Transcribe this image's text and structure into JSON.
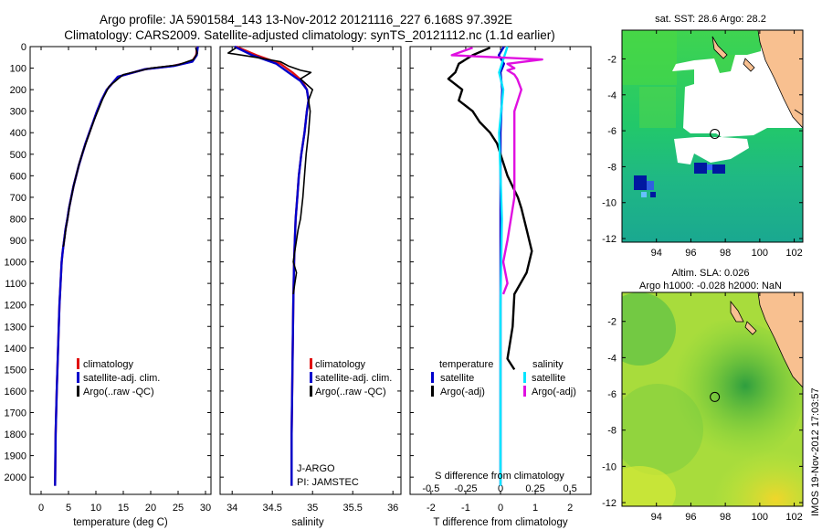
{
  "figure": {
    "title_line1": "Argo profile: JA 5901584_143 13-Nov-2012 20121116_227 6.168S 97.392E",
    "title_line2": "Climatology: CARS2009. Satellite-adjusted climatology: synTS_20121112.nc (1.1d earlier)",
    "stamp": "IMOS 19-Nov-2012 17:03:57",
    "colors": {
      "climatology": "#e01010",
      "satellite": "#0000cc",
      "argo": "#000000",
      "satellite_s": "#00e5ff",
      "argo_s": "#e010e0"
    }
  },
  "chart_data": [
    {
      "type": "line",
      "xlabel": "temperature (deg C)",
      "ylabel": "",
      "xlim": [
        -2,
        31
      ],
      "ylim": [
        2080,
        0
      ],
      "y_inverted": true,
      "xticks": [
        0,
        5,
        10,
        15,
        20,
        25,
        30
      ],
      "yticks": [
        0,
        100,
        200,
        300,
        400,
        500,
        600,
        700,
        800,
        900,
        1000,
        1100,
        1200,
        1300,
        1400,
        1500,
        1600,
        1700,
        1800,
        1900,
        2000
      ],
      "legend": {
        "placement": "lower-center",
        "entries": [
          "climatology",
          "satellite-adj. clim.",
          "Argo(..raw -QC)"
        ]
      },
      "series": [
        {
          "name": "climatology",
          "color": "#e01010",
          "x": [
            28.5,
            28.3,
            27.5,
            24,
            19,
            14,
            12,
            11,
            10.2,
            9.5,
            8.8,
            8.1,
            7.5,
            6.9,
            6.4,
            5.9,
            5.5,
            5.1,
            4.8,
            4.45,
            4.2,
            3.95,
            3.75,
            3.55,
            3.35,
            3.1,
            2.85,
            2.65,
            2.55
          ],
          "y": [
            0,
            40,
            70,
            90,
            105,
            140,
            200,
            250,
            300,
            350,
            400,
            450,
            500,
            550,
            600,
            650,
            700,
            750,
            800,
            850,
            900,
            950,
            1000,
            1100,
            1200,
            1400,
            1600,
            1800,
            2040
          ]
        },
        {
          "name": "satellite-adj. clim.",
          "color": "#0000cc",
          "x": [
            28.6,
            28.4,
            27.6,
            24.2,
            19,
            14,
            12,
            11,
            10.2,
            9.5,
            8.8,
            8.1,
            7.5,
            6.9,
            6.4,
            5.9,
            5.5,
            5.1,
            4.8,
            4.45,
            4.2,
            3.95,
            3.75,
            3.55,
            3.35,
            3.1,
            2.85,
            2.65,
            2.55
          ],
          "y": [
            0,
            40,
            70,
            90,
            105,
            140,
            200,
            250,
            300,
            350,
            400,
            450,
            500,
            550,
            600,
            650,
            700,
            750,
            800,
            850,
            900,
            950,
            1000,
            1100,
            1200,
            1400,
            1600,
            1800,
            2040
          ]
        },
        {
          "name": "Argo(..raw -QC)",
          "color": "#000000",
          "x": [
            28.2,
            28.5,
            27.8,
            25,
            20,
            15,
            12.4,
            11.3,
            10.5,
            9.7,
            9.0,
            8.3,
            7.6,
            7.0,
            6.5,
            6.0,
            5.6,
            5.2,
            4.9,
            4.55,
            4.3,
            4.05
          ],
          "y": [
            5,
            30,
            60,
            85,
            100,
            130,
            185,
            240,
            290,
            340,
            390,
            440,
            490,
            540,
            590,
            640,
            690,
            740,
            790,
            840,
            890,
            930
          ]
        }
      ]
    },
    {
      "type": "line",
      "xlabel": "salinity",
      "ylabel": "",
      "xlim": [
        33.85,
        36.1
      ],
      "ylim": [
        2080,
        0
      ],
      "y_inverted": true,
      "xticks": [
        34,
        34.5,
        35,
        35.5,
        36
      ],
      "xticklabels": [
        "34",
        "34.5",
        "35",
        "35.5",
        "36"
      ],
      "legend": {
        "placement": "lower-center",
        "entries": [
          "climatology",
          "satellite-adj. clim.",
          "Argo(..raw -QC)"
        ]
      },
      "annotations": [
        "J-ARGO",
        "PI: JAMSTEC"
      ],
      "series": [
        {
          "name": "climatology",
          "color": "#e01010",
          "x": [
            34.05,
            34.3,
            34.6,
            34.75,
            34.87,
            34.93,
            34.95,
            34.93,
            34.9,
            34.86,
            34.83,
            34.81,
            34.79,
            34.78,
            34.77,
            34.76,
            34.75,
            34.74,
            34.74
          ],
          "y": [
            0,
            40,
            80,
            120,
            160,
            200,
            250,
            300,
            400,
            500,
            600,
            700,
            800,
            900,
            1000,
            1200,
            1500,
            1800,
            2040
          ]
        },
        {
          "name": "satellite-adj. clim.",
          "color": "#0000cc",
          "x": [
            34.03,
            34.25,
            34.55,
            34.7,
            34.85,
            34.93,
            34.95,
            34.93,
            34.9,
            34.86,
            34.83,
            34.81,
            34.79,
            34.78,
            34.77,
            34.76,
            34.75,
            34.74,
            34.74
          ],
          "y": [
            0,
            40,
            80,
            120,
            160,
            200,
            250,
            300,
            400,
            500,
            600,
            700,
            800,
            900,
            1000,
            1200,
            1500,
            1800,
            2040
          ]
        },
        {
          "name": "Argo(..raw -QC)",
          "color": "#000000",
          "x": [
            34.05,
            33.95,
            34.3,
            34.6,
            34.7,
            34.85,
            34.98,
            34.85,
            35.0,
            34.95,
            34.97,
            34.95,
            34.92,
            34.9,
            34.88,
            34.85,
            34.82,
            34.8,
            34.78,
            34.76,
            34.8,
            34.78,
            34.76
          ],
          "y": [
            5,
            30,
            50,
            70,
            90,
            110,
            120,
            150,
            200,
            250,
            300,
            400,
            500,
            600,
            700,
            800,
            850,
            900,
            950,
            1000,
            1050,
            1100,
            1150
          ]
        }
      ]
    },
    {
      "type": "line",
      "xlabel": "T difference from climatology",
      "title_bottom": "S difference from climatology",
      "xlim": [
        -2.6,
        2.6
      ],
      "ylim": [
        2080,
        0
      ],
      "y_inverted": true,
      "xticks": [
        -2,
        -1,
        0,
        1,
        2
      ],
      "xticklabels": [
        "-2",
        "-1",
        "0",
        "1",
        "2"
      ],
      "s_ticks": [
        -0.5,
        -0.25,
        0,
        0.25,
        0.5
      ],
      "s_ticklabels": [
        "-0.5",
        "-0.25",
        "0",
        "0.25",
        "0.5"
      ],
      "legend": {
        "placement": "lower-center",
        "headers": [
          "temperature",
          "salinity"
        ],
        "entries": [
          "satellite",
          "Argo(-adj)",
          "satellite",
          "Argo(-adj)"
        ]
      },
      "series": [
        {
          "name": "temperature satellite",
          "color": "#0000cc",
          "x": [
            0.1,
            -0.05,
            0.1,
            0.0,
            0.05,
            0.0,
            0.0,
            0.0,
            0.0,
            0.0
          ],
          "y": [
            0,
            40,
            80,
            120,
            200,
            400,
            800,
            1200,
            1600,
            2040
          ]
        },
        {
          "name": "temperature Argo(-adj)",
          "color": "#000000",
          "x": [
            -0.3,
            -0.8,
            -1.2,
            -1.3,
            -1.5,
            -1.1,
            -1.2,
            -0.8,
            -0.6,
            -0.3,
            -0.1,
            0.0,
            0.2,
            0.35,
            0.5,
            0.6,
            0.75,
            0.9,
            0.75,
            0.4,
            0.35,
            0.2,
            0.4
          ],
          "y": [
            5,
            40,
            80,
            120,
            150,
            200,
            250,
            300,
            350,
            400,
            450,
            500,
            600,
            650,
            700,
            750,
            850,
            950,
            1050,
            1150,
            1300,
            1450,
            1500
          ]
        },
        {
          "name": "salinity satellite",
          "color": "#00e5ff",
          "x": [
            0.05,
            0.02,
            -0.01,
            0.02,
            -0.01,
            0.01,
            0.0,
            0.0,
            0.0
          ],
          "y": [
            0,
            60,
            120,
            200,
            400,
            800,
            1200,
            1600,
            2040
          ]
        },
        {
          "name": "salinity Argo(-adj)",
          "color": "#e010e0",
          "x": [
            -0.2,
            -0.35,
            0.3,
            0.05,
            0.1,
            0.05,
            0.1,
            0.12,
            0.15,
            0.1,
            0.1,
            0.1,
            0.05,
            0.02,
            0.05,
            0.02
          ],
          "y": [
            5,
            40,
            60,
            80,
            100,
            110,
            130,
            150,
            200,
            300,
            500,
            700,
            900,
            1000,
            1100,
            1150
          ]
        }
      ]
    },
    {
      "type": "heatmap",
      "title": "sat. SST: 28.6 Argo: 28.2",
      "xlim": [
        92,
        102.5
      ],
      "ylim": [
        -12.2,
        -0.4
      ],
      "xticks": [
        94,
        96,
        98,
        100,
        102
      ],
      "yticks": [
        -2,
        -4,
        -6,
        -8,
        -10,
        -12
      ],
      "marker": {
        "lon": 97.39,
        "lat": -6.17
      }
    },
    {
      "type": "heatmap",
      "title": "Altim. SLA: 0.026",
      "subtitle": "Argo h1000: -0.028 h2000: NaN",
      "xlim": [
        92,
        102.5
      ],
      "ylim": [
        -12.2,
        -0.4
      ],
      "xticks": [
        94,
        96,
        98,
        100,
        102
      ],
      "yticks": [
        -2,
        -4,
        -6,
        -8,
        -10,
        -12
      ],
      "marker": {
        "lon": 97.39,
        "lat": -6.17
      }
    }
  ]
}
